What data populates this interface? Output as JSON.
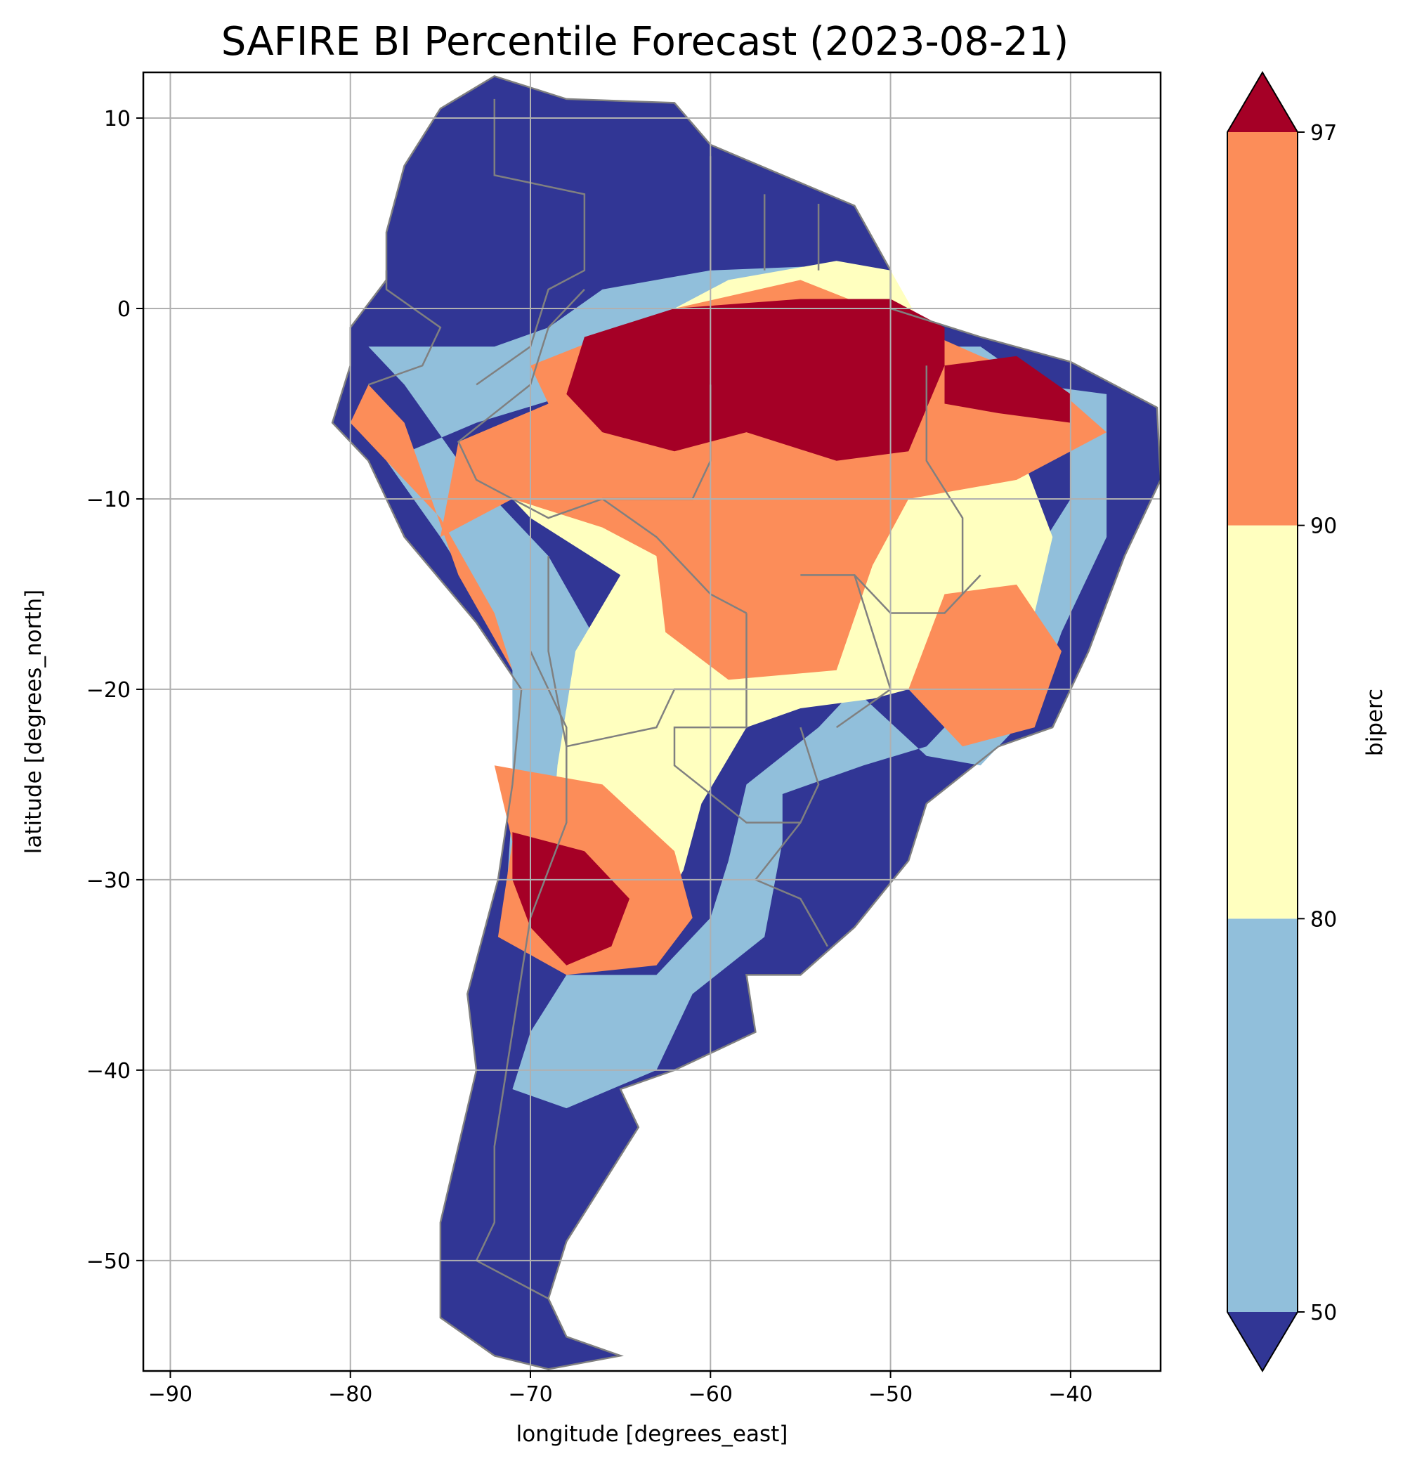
{
  "title": "SAFIRE BI Percentile Forecast (2023-08-21)",
  "xlabel": "longitude [degrees_east]",
  "ylabel": "latitude [degrees_north]",
  "colorbar": {
    "label": "biperc",
    "ticks": [
      "50",
      "80",
      "90",
      "97"
    ],
    "colors": [
      "#313695",
      "#91bfdb",
      "#ffffbf",
      "#fc8d59",
      "#a50026"
    ],
    "extend": "both"
  },
  "colors": {
    "border": "#808080",
    "grid": "#b0b0b0"
  },
  "chart_data": {
    "type": "heatmap",
    "title": "SAFIRE BI Percentile Forecast (2023-08-21)",
    "xlabel": "longitude [degrees_east]",
    "ylabel": "latitude [degrees_north]",
    "xlim": [
      -91.5,
      -35
    ],
    "ylim": [
      -55.8,
      12.4
    ],
    "xticks": [
      -90,
      -80,
      -70,
      -60,
      -50,
      -40
    ],
    "yticks": [
      10,
      0,
      -10,
      -20,
      -30,
      -40,
      -50
    ],
    "grid": true,
    "levels": [
      50,
      80,
      90,
      97
    ],
    "colorbar_label": "biperc",
    "regions": [
      {
        "level": "<50",
        "color": "#313695",
        "lonlat": [
          [
            -72,
            12.2
          ],
          [
            -68,
            11
          ],
          [
            -62,
            10.8
          ],
          [
            -60,
            8.6
          ],
          [
            -52,
            5.4
          ],
          [
            -50,
            2
          ],
          [
            -50,
            0
          ],
          [
            -45,
            -1.5
          ],
          [
            -40,
            -2.8
          ],
          [
            -35.2,
            -5.2
          ],
          [
            -35,
            -9
          ],
          [
            -37,
            -13
          ],
          [
            -39,
            -18
          ],
          [
            -41,
            -22
          ],
          [
            -44,
            -23
          ],
          [
            -48,
            -26
          ],
          [
            -49,
            -29
          ],
          [
            -52,
            -32.5
          ],
          [
            -55,
            -35
          ],
          [
            -58,
            -35
          ],
          [
            -57.5,
            -38
          ],
          [
            -62,
            -40
          ],
          [
            -65,
            -41
          ],
          [
            -64,
            -43
          ],
          [
            -66,
            -46
          ],
          [
            -68,
            -49
          ],
          [
            -69,
            -52
          ],
          [
            -68,
            -54
          ],
          [
            -65,
            -55
          ],
          [
            -69,
            -55.7
          ],
          [
            -72,
            -55
          ],
          [
            -75,
            -53
          ],
          [
            -75,
            -48
          ],
          [
            -74,
            -44
          ],
          [
            -73,
            -40
          ],
          [
            -73.5,
            -36
          ],
          [
            -71.8,
            -30
          ],
          [
            -71,
            -25
          ],
          [
            -70.5,
            -20
          ],
          [
            -73,
            -16.5
          ],
          [
            -77,
            -12
          ],
          [
            -79,
            -8
          ],
          [
            -81,
            -6
          ],
          [
            -80,
            -3
          ],
          [
            -80,
            -1
          ],
          [
            -78,
            1.5
          ],
          [
            -78,
            4
          ],
          [
            -77,
            7.5
          ],
          [
            -75,
            10.5
          ]
        ]
      },
      {
        "level": "50-80",
        "color": "#91bfdb",
        "lonlat": [
          [
            -66,
            1
          ],
          [
            -60,
            2
          ],
          [
            -52,
            2.3
          ],
          [
            -51,
            -2
          ],
          [
            -45,
            -2
          ],
          [
            -42,
            -4
          ],
          [
            -38,
            -4.5
          ],
          [
            -38,
            -12
          ],
          [
            -40.5,
            -17
          ],
          [
            -42,
            -21
          ],
          [
            -45,
            -24
          ],
          [
            -48,
            -23.5
          ],
          [
            -52,
            -20
          ],
          [
            -54,
            -22
          ],
          [
            -58,
            -25
          ],
          [
            -59,
            -29
          ],
          [
            -60,
            -32
          ],
          [
            -63,
            -35
          ],
          [
            -68,
            -35
          ],
          [
            -70,
            -38
          ],
          [
            -71,
            -41
          ],
          [
            -68,
            -42
          ],
          [
            -63,
            -40
          ],
          [
            -61,
            -36
          ],
          [
            -57,
            -33
          ],
          [
            -56,
            -28
          ],
          [
            -56,
            -25.5
          ],
          [
            -54.5,
            -25
          ],
          [
            -51.5,
            -24
          ],
          [
            -48,
            -23
          ],
          [
            -46,
            -21
          ],
          [
            -44.5,
            -18
          ],
          [
            -42,
            -13
          ],
          [
            -40,
            -10
          ],
          [
            -40,
            -7
          ],
          [
            -45,
            -6
          ],
          [
            -52,
            -5
          ],
          [
            -60,
            -4
          ],
          [
            -66,
            -4
          ],
          [
            -73,
            -6
          ],
          [
            -78,
            -8
          ],
          [
            -75,
            -12
          ],
          [
            -73,
            -15
          ],
          [
            -71,
            -19
          ],
          [
            -71,
            -26
          ],
          [
            -71.5,
            -33
          ],
          [
            -70,
            -29
          ],
          [
            -67,
            -24
          ],
          [
            -66,
            -18
          ],
          [
            -69,
            -13
          ],
          [
            -74,
            -8
          ],
          [
            -77,
            -4
          ],
          [
            -79,
            -2
          ],
          [
            -72,
            -2
          ],
          [
            -69,
            -1
          ]
        ]
      },
      {
        "level": "80-90",
        "color": "#ffffbf",
        "lonlat": [
          [
            -66,
            -2
          ],
          [
            -59,
            1.5
          ],
          [
            -53,
            2.5
          ],
          [
            -50,
            2
          ],
          [
            -47,
            -3
          ],
          [
            -43,
            -7
          ],
          [
            -41,
            -12
          ],
          [
            -42,
            -16
          ],
          [
            -45,
            -19
          ],
          [
            -51,
            -20.5
          ],
          [
            -55,
            -21
          ],
          [
            -58,
            -22
          ],
          [
            -60.5,
            -26
          ],
          [
            -61.5,
            -29.5
          ],
          [
            -63,
            -32
          ],
          [
            -66,
            -33.5
          ],
          [
            -69,
            -30
          ],
          [
            -68.5,
            -24
          ],
          [
            -67.5,
            -18
          ],
          [
            -65,
            -14
          ],
          [
            -70,
            -11
          ],
          [
            -73,
            -8
          ],
          [
            -68,
            -5
          ]
        ]
      },
      {
        "level": "90-97",
        "color": "#fc8d59",
        "lonlat": [
          [
            -70,
            -3
          ],
          [
            -62,
            0
          ],
          [
            -55,
            1.5
          ],
          [
            -51,
            0
          ],
          [
            -45,
            -2.5
          ],
          [
            -41,
            -4
          ],
          [
            -38,
            -6.5
          ],
          [
            -43,
            -9
          ],
          [
            -49,
            -10
          ],
          [
            -51,
            -13.5
          ],
          [
            -53,
            -19
          ],
          [
            -59,
            -19.5
          ],
          [
            -62.5,
            -17
          ],
          [
            -63,
            -13
          ],
          [
            -66,
            -11.5
          ],
          [
            -71,
            -10
          ],
          [
            -75,
            -12
          ],
          [
            -74,
            -7
          ],
          [
            -69,
            -5
          ]
        ]
      },
      {
        "level": "90-97",
        "color": "#fc8d59",
        "lonlat": [
          [
            -47,
            -15
          ],
          [
            -43,
            -14.5
          ],
          [
            -40.5,
            -18
          ],
          [
            -42,
            -22
          ],
          [
            -46,
            -23
          ],
          [
            -49,
            -20
          ]
        ]
      },
      {
        "level": "90-97",
        "color": "#fc8d59",
        "lonlat": [
          [
            -79,
            -4
          ],
          [
            -77,
            -6
          ],
          [
            -74,
            -14
          ],
          [
            -71,
            -19
          ],
          [
            -72,
            -16
          ],
          [
            -75,
            -11
          ],
          [
            -78,
            -8
          ],
          [
            -80,
            -6
          ]
        ]
      },
      {
        "level": "90-97",
        "color": "#fc8d59",
        "lonlat": [
          [
            -72,
            -24
          ],
          [
            -66,
            -25
          ],
          [
            -62,
            -28.5
          ],
          [
            -61,
            -32
          ],
          [
            -63,
            -34.5
          ],
          [
            -68,
            -35
          ],
          [
            -71.8,
            -33
          ],
          [
            -71,
            -28
          ]
        ]
      },
      {
        "level": ">97",
        "color": "#a50026",
        "lonlat": [
          [
            -67,
            -1.5
          ],
          [
            -62,
            0
          ],
          [
            -55,
            0.5
          ],
          [
            -50,
            0.5
          ],
          [
            -47,
            -1
          ],
          [
            -47,
            -3
          ],
          [
            -49,
            -7.5
          ],
          [
            -53,
            -8
          ],
          [
            -58,
            -6.5
          ],
          [
            -62,
            -7.5
          ],
          [
            -66,
            -6.5
          ],
          [
            -68,
            -4.5
          ]
        ]
      },
      {
        "level": ">97",
        "color": "#a50026",
        "lonlat": [
          [
            -47,
            -3
          ],
          [
            -43,
            -2.5
          ],
          [
            -40,
            -4.5
          ],
          [
            -40,
            -6
          ],
          [
            -44,
            -5.5
          ],
          [
            -47,
            -5
          ]
        ]
      },
      {
        "level": ">97",
        "color": "#a50026",
        "lonlat": [
          [
            -71,
            -27.5
          ],
          [
            -67,
            -28.5
          ],
          [
            -64.5,
            -31
          ],
          [
            -65.5,
            -33.5
          ],
          [
            -68,
            -34.5
          ],
          [
            -70,
            -32.5
          ],
          [
            -71,
            -30
          ]
        ]
      }
    ]
  }
}
